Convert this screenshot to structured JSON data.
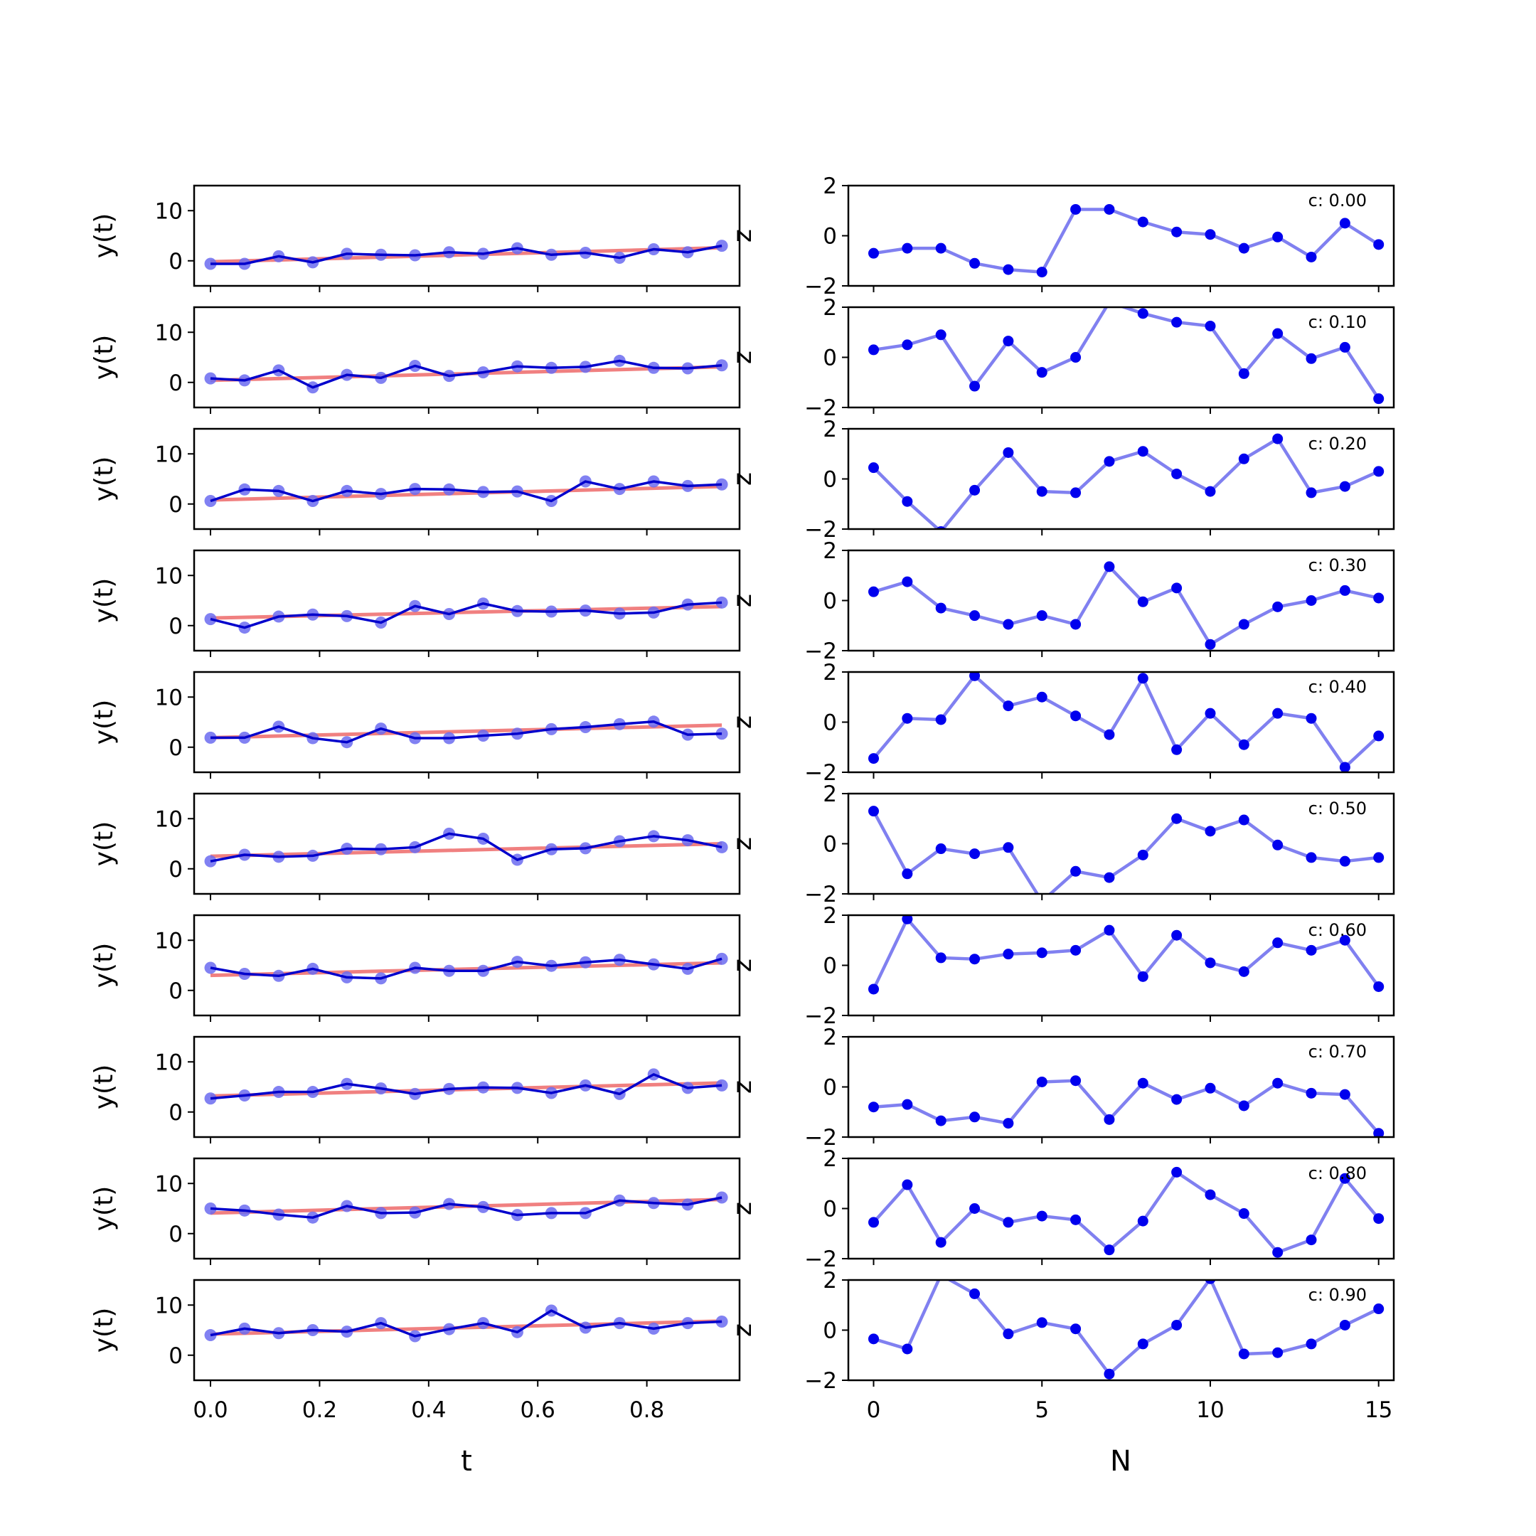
{
  "figure": {
    "left_xlabel": "t",
    "right_xlabel": "N",
    "left_ylabel": "y(t)",
    "right_ylabel": "z"
  },
  "colors": {
    "fit_line": "#f08080",
    "data_line": "#0000cc",
    "data_marker": "#6b6bf0",
    "noise": "#0000ee",
    "noise_line": "#8080f0",
    "frame": "#000000"
  },
  "chart_data": [
    {
      "type": "line",
      "panel": "left",
      "x": [
        0,
        0.0625,
        0.125,
        0.1875,
        0.25,
        0.3125,
        0.375,
        0.4375,
        0.5,
        0.5625,
        0.625,
        0.6875,
        0.75,
        0.8125,
        0.875,
        0.9375
      ],
      "ylabel": "y(t)",
      "xlim": [
        -0.03,
        0.97
      ],
      "ylim": [
        -5,
        15
      ],
      "yticks": [
        0,
        10
      ],
      "xticks": [
        0.0,
        0.2,
        0.4,
        0.6,
        0.8
      ],
      "rows": [
        {
          "fit": [
            -0.2,
            2.6
          ],
          "y": [
            -0.6,
            -0.6,
            0.9,
            -0.3,
            1.4,
            1.2,
            1.1,
            1.7,
            1.4,
            2.5,
            1.2,
            1.6,
            0.6,
            2.3,
            1.7,
            3.0
          ]
        },
        {
          "fit": [
            0.4,
            3.1
          ],
          "y": [
            0.8,
            0.4,
            2.4,
            -1.0,
            1.5,
            0.9,
            3.3,
            1.3,
            2.0,
            3.2,
            2.9,
            3.1,
            4.3,
            2.9,
            2.8,
            3.4
          ]
        },
        {
          "fit": [
            0.8,
            3.5
          ],
          "y": [
            0.6,
            2.9,
            2.6,
            0.6,
            2.6,
            2.0,
            3.0,
            2.9,
            2.4,
            2.5,
            0.6,
            4.5,
            3.0,
            4.5,
            3.6,
            3.9
          ]
        },
        {
          "fit": [
            1.5,
            3.8
          ],
          "y": [
            1.3,
            -0.4,
            1.8,
            2.2,
            1.9,
            0.6,
            3.9,
            2.3,
            4.4,
            2.9,
            2.8,
            3.0,
            2.4,
            2.6,
            4.2,
            4.6
          ]
        },
        {
          "fit": [
            1.9,
            4.4
          ],
          "y": [
            1.9,
            1.9,
            4.1,
            1.8,
            1.0,
            3.7,
            1.8,
            1.8,
            2.3,
            2.7,
            3.6,
            4.0,
            4.6,
            5.1,
            2.5,
            2.7
          ]
        },
        {
          "fit": [
            2.5,
            5.0
          ],
          "y": [
            1.5,
            2.8,
            2.4,
            2.6,
            4.0,
            3.9,
            4.3,
            7.0,
            6.0,
            1.8,
            3.9,
            4.1,
            5.5,
            6.5,
            5.7,
            4.3
          ]
        },
        {
          "fit": [
            3.0,
            5.5
          ],
          "y": [
            4.5,
            3.3,
            2.9,
            4.3,
            2.6,
            2.4,
            4.5,
            3.9,
            3.9,
            5.7,
            4.9,
            5.6,
            6.1,
            5.2,
            4.3,
            6.3
          ]
        },
        {
          "fit": [
            3.2,
            5.8
          ],
          "y": [
            2.7,
            3.3,
            4.0,
            4.0,
            5.6,
            4.7,
            3.6,
            4.6,
            4.9,
            4.8,
            3.8,
            5.3,
            3.6,
            7.5,
            4.8,
            5.3
          ]
        },
        {
          "fit": [
            4.1,
            6.8
          ],
          "y": [
            5.0,
            4.6,
            3.8,
            3.2,
            5.5,
            4.1,
            4.2,
            5.9,
            5.3,
            3.7,
            4.1,
            4.1,
            6.6,
            6.1,
            5.8,
            7.2
          ]
        },
        {
          "fit": [
            4.2,
            6.8
          ],
          "y": [
            4.0,
            5.3,
            4.4,
            5.0,
            4.7,
            6.4,
            3.8,
            5.2,
            6.4,
            4.6,
            8.9,
            5.5,
            6.4,
            5.3,
            6.4,
            6.7
          ]
        }
      ]
    },
    {
      "type": "line",
      "panel": "right",
      "x": [
        0,
        1,
        2,
        3,
        4,
        5,
        6,
        7,
        8,
        9,
        10,
        11,
        12,
        13,
        14,
        15
      ],
      "ylabel": "z",
      "xlim": [
        -0.75,
        15.45
      ],
      "ylim": [
        -2,
        2
      ],
      "yticks": [
        -2,
        0,
        2
      ],
      "xticks": [
        0,
        5,
        10,
        15
      ],
      "rows": [
        {
          "label": "c: 0.00",
          "z": [
            -0.7,
            -0.5,
            -0.5,
            -1.1,
            -1.35,
            -1.45,
            1.05,
            1.05,
            0.55,
            0.15,
            0.05,
            -0.5,
            -0.05,
            -0.85,
            0.5,
            -0.35
          ]
        },
        {
          "label": "c: 0.10",
          "z": [
            0.3,
            0.5,
            0.9,
            -1.15,
            0.65,
            -0.6,
            0.0,
            2.2,
            1.75,
            1.4,
            1.25,
            -0.65,
            0.95,
            -0.05,
            0.4,
            -1.65
          ]
        },
        {
          "label": "c: 0.20",
          "z": [
            0.45,
            -0.9,
            -2.1,
            -0.45,
            1.05,
            -0.5,
            -0.55,
            0.7,
            1.1,
            0.2,
            -0.5,
            0.8,
            1.6,
            -0.55,
            -0.3,
            0.3
          ]
        },
        {
          "label": "c: 0.30",
          "z": [
            0.35,
            0.75,
            -0.3,
            -0.6,
            -0.95,
            -0.6,
            -0.95,
            1.35,
            -0.05,
            0.5,
            -1.75,
            -0.95,
            -0.25,
            0.0,
            0.4,
            0.1
          ]
        },
        {
          "label": "c: 0.40",
          "z": [
            -1.45,
            0.15,
            0.1,
            1.85,
            0.65,
            1.0,
            0.25,
            -0.5,
            1.75,
            -1.1,
            0.35,
            -0.9,
            0.35,
            0.15,
            -1.8,
            -0.55
          ]
        },
        {
          "label": "c: 0.50",
          "z": [
            1.3,
            -1.2,
            -0.2,
            -0.4,
            -0.15,
            -2.3,
            -1.1,
            -1.35,
            -0.45,
            1.0,
            0.5,
            0.95,
            -0.05,
            -0.55,
            -0.7,
            -0.55
          ]
        },
        {
          "label": "c: 0.60",
          "z": [
            -0.95,
            1.85,
            0.3,
            0.25,
            0.45,
            0.5,
            0.6,
            1.4,
            -0.45,
            1.2,
            0.1,
            -0.25,
            0.9,
            0.6,
            1.0,
            -0.85
          ]
        },
        {
          "label": "c: 0.70",
          "z": [
            -0.8,
            -0.7,
            -1.35,
            -1.2,
            -1.45,
            0.2,
            0.25,
            -1.3,
            0.15,
            -0.5,
            -0.05,
            -0.75,
            0.15,
            -0.25,
            -0.3,
            -1.85
          ]
        },
        {
          "label": "c: 0.80",
          "z": [
            -0.55,
            0.95,
            -1.35,
            0.0,
            -0.55,
            -0.3,
            -0.45,
            -1.65,
            -0.5,
            1.45,
            0.55,
            -0.2,
            -1.75,
            -1.25,
            1.2,
            -0.4
          ]
        },
        {
          "label": "c: 0.90",
          "z": [
            -0.35,
            -0.75,
            2.2,
            1.45,
            -0.15,
            0.3,
            0.05,
            -1.75,
            -0.55,
            0.2,
            2.05,
            -0.95,
            -0.9,
            -0.55,
            0.2,
            0.85
          ]
        }
      ]
    }
  ]
}
